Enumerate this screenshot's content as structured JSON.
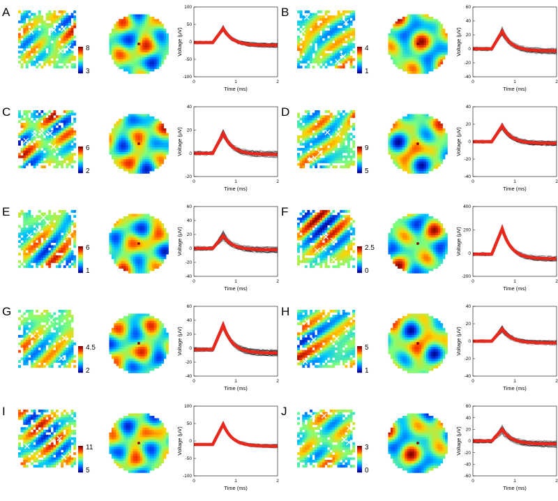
{
  "chart_data": [
    {
      "panel": "A",
      "type": "heatmap",
      "colorbar": {
        "max": "8",
        "min": "3"
      },
      "waveform": {
        "type": "line",
        "xlabel": "Time (ms)",
        "ylabel": "Voltage (μV)",
        "xticks": [
          "0",
          "1",
          "2"
        ],
        "yticks": [
          "100",
          "50",
          "0",
          "-50",
          "-100"
        ],
        "ylim": [
          -100,
          100
        ],
        "peak": 38,
        "base": -2,
        "end": -10,
        "spread": 12,
        "mean_color": "#e8281c"
      }
    },
    {
      "panel": "B",
      "type": "heatmap",
      "colorbar": {
        "max": "4",
        "min": "1"
      },
      "waveform": {
        "type": "line",
        "xlabel": "Time (ms)",
        "ylabel": "Voltage (μV)",
        "xticks": [
          "0",
          "1",
          "2"
        ],
        "yticks": [
          "60",
          "40",
          "20",
          "0",
          "-20",
          "-40"
        ],
        "ylim": [
          -40,
          60
        ],
        "peak": 25,
        "base": 0,
        "end": -3,
        "spread": 8,
        "mean_color": "#e8281c"
      }
    },
    {
      "panel": "C",
      "type": "heatmap",
      "colorbar": {
        "max": "6",
        "min": "2"
      },
      "waveform": {
        "type": "line",
        "xlabel": "Time (ms)",
        "ylabel": "Voltage (μV)",
        "xticks": [
          "0",
          "1",
          "2"
        ],
        "yticks": [
          "40",
          "20",
          "0",
          "-20"
        ],
        "ylim": [
          -20,
          40
        ],
        "peak": 17,
        "base": 0,
        "end": -1,
        "spread": 5,
        "mean_color": "#e8281c"
      }
    },
    {
      "panel": "D",
      "type": "heatmap",
      "colorbar": {
        "max": "9",
        "min": "5"
      },
      "waveform": {
        "type": "line",
        "xlabel": "Time (ms)",
        "ylabel": "Voltage (μV)",
        "xticks": [
          "0",
          "1",
          "2"
        ],
        "yticks": [
          "40",
          "20",
          "0",
          "-20",
          "-40"
        ],
        "ylim": [
          -40,
          40
        ],
        "peak": 18,
        "base": 0,
        "end": -2,
        "spread": 5,
        "mean_color": "#e8281c"
      }
    },
    {
      "panel": "E",
      "type": "heatmap",
      "colorbar": {
        "max": "6",
        "min": "1"
      },
      "waveform": {
        "type": "line",
        "xlabel": "Time (ms)",
        "ylabel": "Voltage (μV)",
        "xticks": [
          "0",
          "1",
          "2"
        ],
        "yticks": [
          "60",
          "40",
          "20",
          "0",
          "-20",
          "-40"
        ],
        "ylim": [
          -40,
          60
        ],
        "peak": 18,
        "base": 0,
        "end": -2,
        "spread": 8,
        "mean_color": "#e8281c"
      }
    },
    {
      "panel": "F",
      "type": "heatmap",
      "colorbar": {
        "max": "2.5",
        "min": "0"
      },
      "waveform": {
        "type": "line",
        "xlabel": "Time (ms)",
        "ylabel": "Voltage (μV)",
        "xticks": [
          "0",
          "1",
          "2"
        ],
        "yticks": [
          "400",
          "200",
          "0",
          "-200"
        ],
        "ylim": [
          -200,
          400
        ],
        "peak": 210,
        "base": -10,
        "end": -50,
        "spread": 40,
        "mean_color": "#e8281c"
      }
    },
    {
      "panel": "G",
      "type": "heatmap",
      "colorbar": {
        "max": "4.5",
        "min": "2"
      },
      "waveform": {
        "type": "line",
        "xlabel": "Time (ms)",
        "ylabel": "Voltage (μV)",
        "xticks": [
          "0",
          "1",
          "2"
        ],
        "yticks": [
          "60",
          "40",
          "20",
          "0",
          "-20",
          "-40"
        ],
        "ylim": [
          -40,
          60
        ],
        "peak": 33,
        "base": -2,
        "end": -7,
        "spread": 8,
        "mean_color": "#e8281c"
      }
    },
    {
      "panel": "H",
      "type": "heatmap",
      "colorbar": {
        "max": "5",
        "min": "1"
      },
      "waveform": {
        "type": "line",
        "xlabel": "Time (ms)",
        "ylabel": "Voltage (μV)",
        "xticks": [
          "0",
          "1",
          "2"
        ],
        "yticks": [
          "40",
          "20",
          "0",
          "-20",
          "-40"
        ],
        "ylim": [
          -40,
          40
        ],
        "peak": 14,
        "base": 0,
        "end": -2,
        "spread": 5,
        "mean_color": "#e8281c"
      }
    },
    {
      "panel": "I",
      "type": "heatmap",
      "colorbar": {
        "max": "11",
        "min": "5"
      },
      "waveform": {
        "type": "line",
        "xlabel": "Time (ms)",
        "ylabel": "Voltage (μV)",
        "xticks": [
          "0",
          "1",
          "2"
        ],
        "yticks": [
          "100",
          "50",
          "0",
          "-50",
          "-100"
        ],
        "ylim": [
          -100,
          100
        ],
        "peak": 48,
        "base": -10,
        "end": -15,
        "spread": 10,
        "mean_color": "#e8281c"
      }
    },
    {
      "panel": "J",
      "type": "heatmap",
      "colorbar": {
        "max": "3",
        "min": "0"
      },
      "waveform": {
        "type": "line",
        "xlabel": "Time (ms)",
        "ylabel": "Voltage (μV)",
        "xticks": [
          "0",
          "1",
          "2"
        ],
        "yticks": [
          "60",
          "40",
          "20",
          "0",
          "-20",
          "-40",
          "-60"
        ],
        "ylim": [
          -60,
          60
        ],
        "peak": 20,
        "base": 0,
        "end": -5,
        "spread": 10,
        "mean_color": "#e8281c"
      }
    }
  ],
  "colormap": [
    "#00008f",
    "#0050ff",
    "#00c8ff",
    "#7dff7a",
    "#ffd200",
    "#ff3c00",
    "#800000"
  ]
}
